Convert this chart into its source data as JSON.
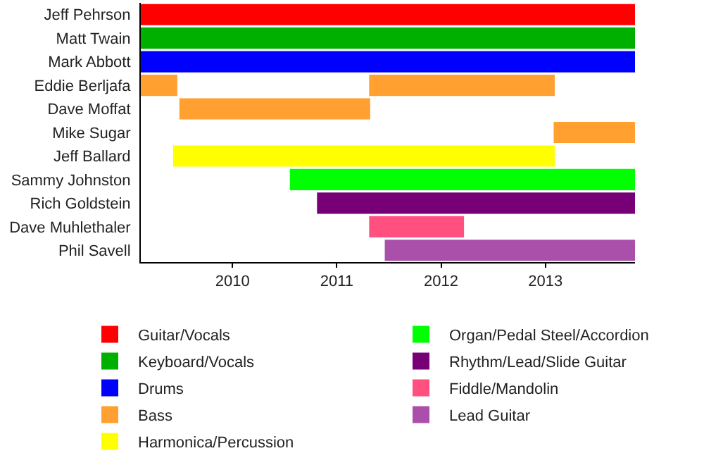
{
  "chart_data": {
    "type": "bar",
    "orientation": "horizontal",
    "categories": [
      "Jeff Pehrson",
      "Matt Twain",
      "Mark Abbott",
      "Eddie Berljafa",
      "Dave Moffat",
      "Mike Sugar",
      "Jeff Ballard",
      "Sammy Johnston",
      "Rich Goldstein",
      "Dave Muhlethaler",
      "Phil Savell"
    ],
    "series": [
      {
        "name": "Guitar/Vocals",
        "color": "#ff0000",
        "base": [
          2009.12,
          null,
          null,
          null,
          null,
          null,
          null,
          null,
          null,
          null,
          null
        ],
        "values": [
          4.74,
          null,
          null,
          null,
          null,
          null,
          null,
          null,
          null,
          null,
          null
        ]
      },
      {
        "name": "Keyboard/Vocals",
        "color": "#00b000",
        "base": [
          null,
          2009.12,
          null,
          null,
          null,
          null,
          null,
          null,
          null,
          null,
          null
        ],
        "values": [
          null,
          4.74,
          null,
          null,
          null,
          null,
          null,
          null,
          null,
          null,
          null
        ]
      },
      {
        "name": "Drums",
        "color": "#0000ff",
        "base": [
          null,
          null,
          2009.12,
          null,
          null,
          null,
          null,
          null,
          null,
          null,
          null
        ],
        "values": [
          null,
          null,
          4.74,
          null,
          null,
          null,
          null,
          null,
          null,
          null,
          null
        ]
      },
      {
        "name": "Bass",
        "color": "#ffa030",
        "base": [
          null,
          null,
          null,
          2009.12,
          2009.49,
          2013.08,
          null,
          null,
          null,
          null,
          null
        ],
        "values": [
          null,
          null,
          null,
          0.35,
          1.83,
          0.78,
          null,
          null,
          null,
          null,
          null
        ]
      },
      {
        "name": "Harmonica/Percussion",
        "color": "#ffff00",
        "base": [
          null,
          null,
          null,
          null,
          null,
          null,
          2009.43,
          null,
          null,
          null,
          null
        ],
        "values": [
          null,
          null,
          null,
          null,
          null,
          null,
          3.66,
          null,
          null,
          null,
          null
        ]
      },
      {
        "name": "Organ/Pedal Steel/Accordion",
        "color": "#00ff00",
        "base": [
          null,
          null,
          null,
          null,
          null,
          null,
          null,
          2010.55,
          null,
          null,
          null
        ],
        "values": [
          null,
          null,
          null,
          null,
          null,
          null,
          null,
          3.31,
          null,
          null,
          null
        ]
      },
      {
        "name": "Rhythm/Lead/Slide Guitar",
        "color": "#770077",
        "base": [
          null,
          null,
          null,
          null,
          null,
          null,
          null,
          null,
          2010.81,
          null,
          null
        ],
        "values": [
          null,
          null,
          null,
          null,
          null,
          null,
          null,
          null,
          3.05,
          null,
          null
        ]
      },
      {
        "name": "Fiddle/Mandolin",
        "color": "#ff5080",
        "base": [
          null,
          null,
          null,
          null,
          null,
          null,
          null,
          null,
          null,
          2011.31,
          null
        ],
        "values": [
          null,
          null,
          null,
          null,
          null,
          null,
          null,
          null,
          null,
          0.91,
          null
        ]
      },
      {
        "name": "Lead Guitar",
        "color": "#aa50aa",
        "base": [
          null,
          null,
          null,
          null,
          null,
          null,
          null,
          null,
          null,
          null,
          2011.46
        ],
        "values": [
          null,
          null,
          null,
          null,
          null,
          null,
          null,
          null,
          null,
          null,
          2.4
        ]
      },
      {
        "color": "#ffa030",
        "base": [
          null,
          null,
          null,
          2011.31,
          null,
          null,
          null,
          null,
          null,
          null,
          null
        ],
        "values": [
          null,
          null,
          null,
          1.78,
          null,
          null,
          null,
          null,
          null,
          null,
          null
        ]
      }
    ],
    "xlim": [
      2009.12,
      2013.86
    ],
    "xticks": [
      2010,
      2011,
      2012,
      2013
    ],
    "grid": false,
    "legend": "bottom"
  }
}
